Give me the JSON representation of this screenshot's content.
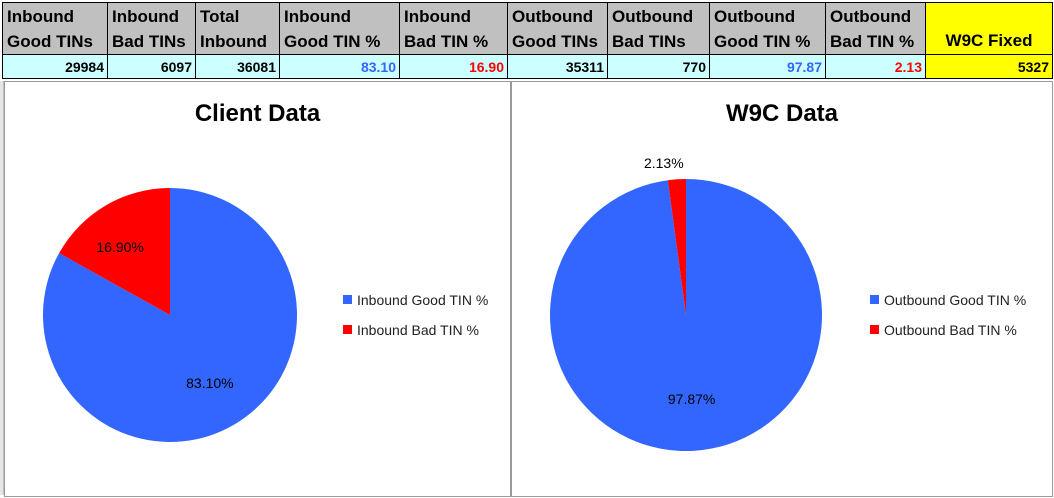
{
  "table": {
    "headers": [
      [
        "Inbound",
        "Good TINs"
      ],
      [
        "Inbound",
        "Bad TINs"
      ],
      [
        "Total",
        "Inbound"
      ],
      [
        "Inbound",
        "Good TIN %"
      ],
      [
        "Inbound",
        "Bad TIN %"
      ],
      [
        "Outbound",
        "Good TINs"
      ],
      [
        "Outbound",
        "Bad TINs"
      ],
      [
        "Outbound",
        "Good TIN %"
      ],
      [
        "Outbound",
        "Bad TIN %"
      ],
      [
        "",
        "W9C Fixed"
      ]
    ],
    "values": [
      "29984",
      "6097",
      "36081",
      "83.10",
      "16.90",
      "35311",
      "770",
      "97.87",
      "2.13",
      "5327"
    ],
    "value_colors": [
      "#000000",
      "#000000",
      "#000000",
      "#3366ff",
      "#ff0000",
      "#000000",
      "#000000",
      "#3366ff",
      "#ff0000",
      "#000000"
    ],
    "header_highlight_color": "#ffff00"
  },
  "chart_data": [
    {
      "type": "pie",
      "title": "Client Data",
      "categories": [
        "Inbound Good TIN %",
        "Inbound Bad TIN %"
      ],
      "values": [
        83.1,
        16.9
      ],
      "data_labels": [
        "83.10%",
        "16.90%"
      ],
      "colors": [
        "#3366ff",
        "#ff0000"
      ],
      "legend": "right"
    },
    {
      "type": "pie",
      "title": "W9C Data",
      "categories": [
        "Outbound Good TIN %",
        "Outbound Bad TIN %"
      ],
      "values": [
        97.87,
        2.13
      ],
      "data_labels": [
        "97.87%",
        "2.13%"
      ],
      "colors": [
        "#3366ff",
        "#ff0000"
      ],
      "legend": "right"
    }
  ]
}
